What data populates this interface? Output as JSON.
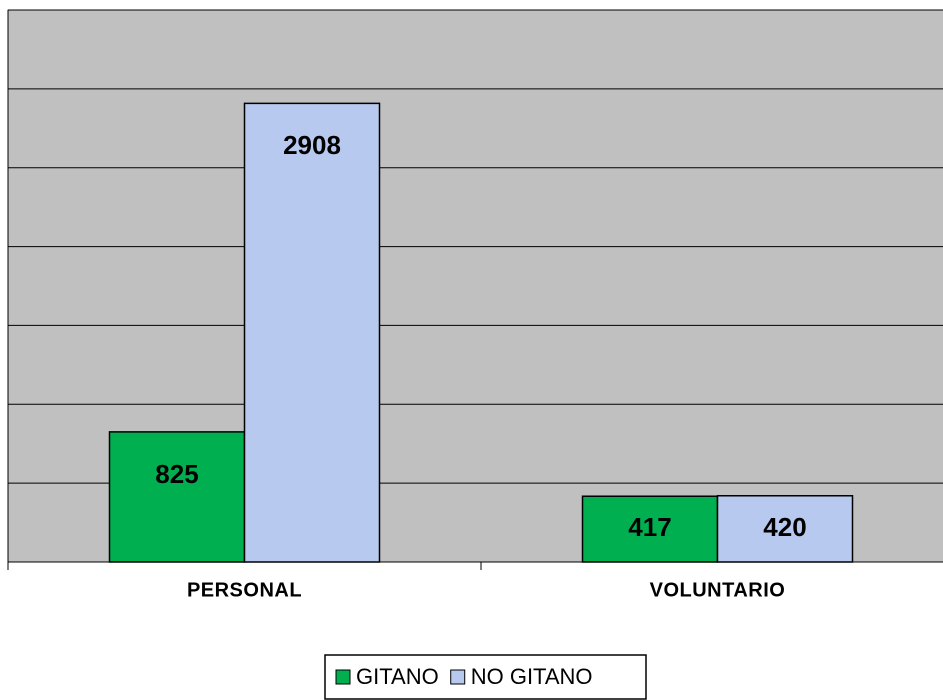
{
  "chart_data": {
    "type": "bar",
    "categories": [
      "PERSONAL",
      "VOLUNTARIO"
    ],
    "series": [
      {
        "name": "GITANO",
        "color": "#00b050",
        "values": [
          825,
          417
        ]
      },
      {
        "name": "NO GITANO",
        "color": "#b7c9ef",
        "values": [
          2908,
          420
        ]
      }
    ],
    "ylim": [
      0,
      3500
    ],
    "yticks": [
      0,
      500,
      1000,
      1500,
      2000,
      2500,
      3000,
      3500
    ],
    "grid": true,
    "legend": "bottom"
  }
}
